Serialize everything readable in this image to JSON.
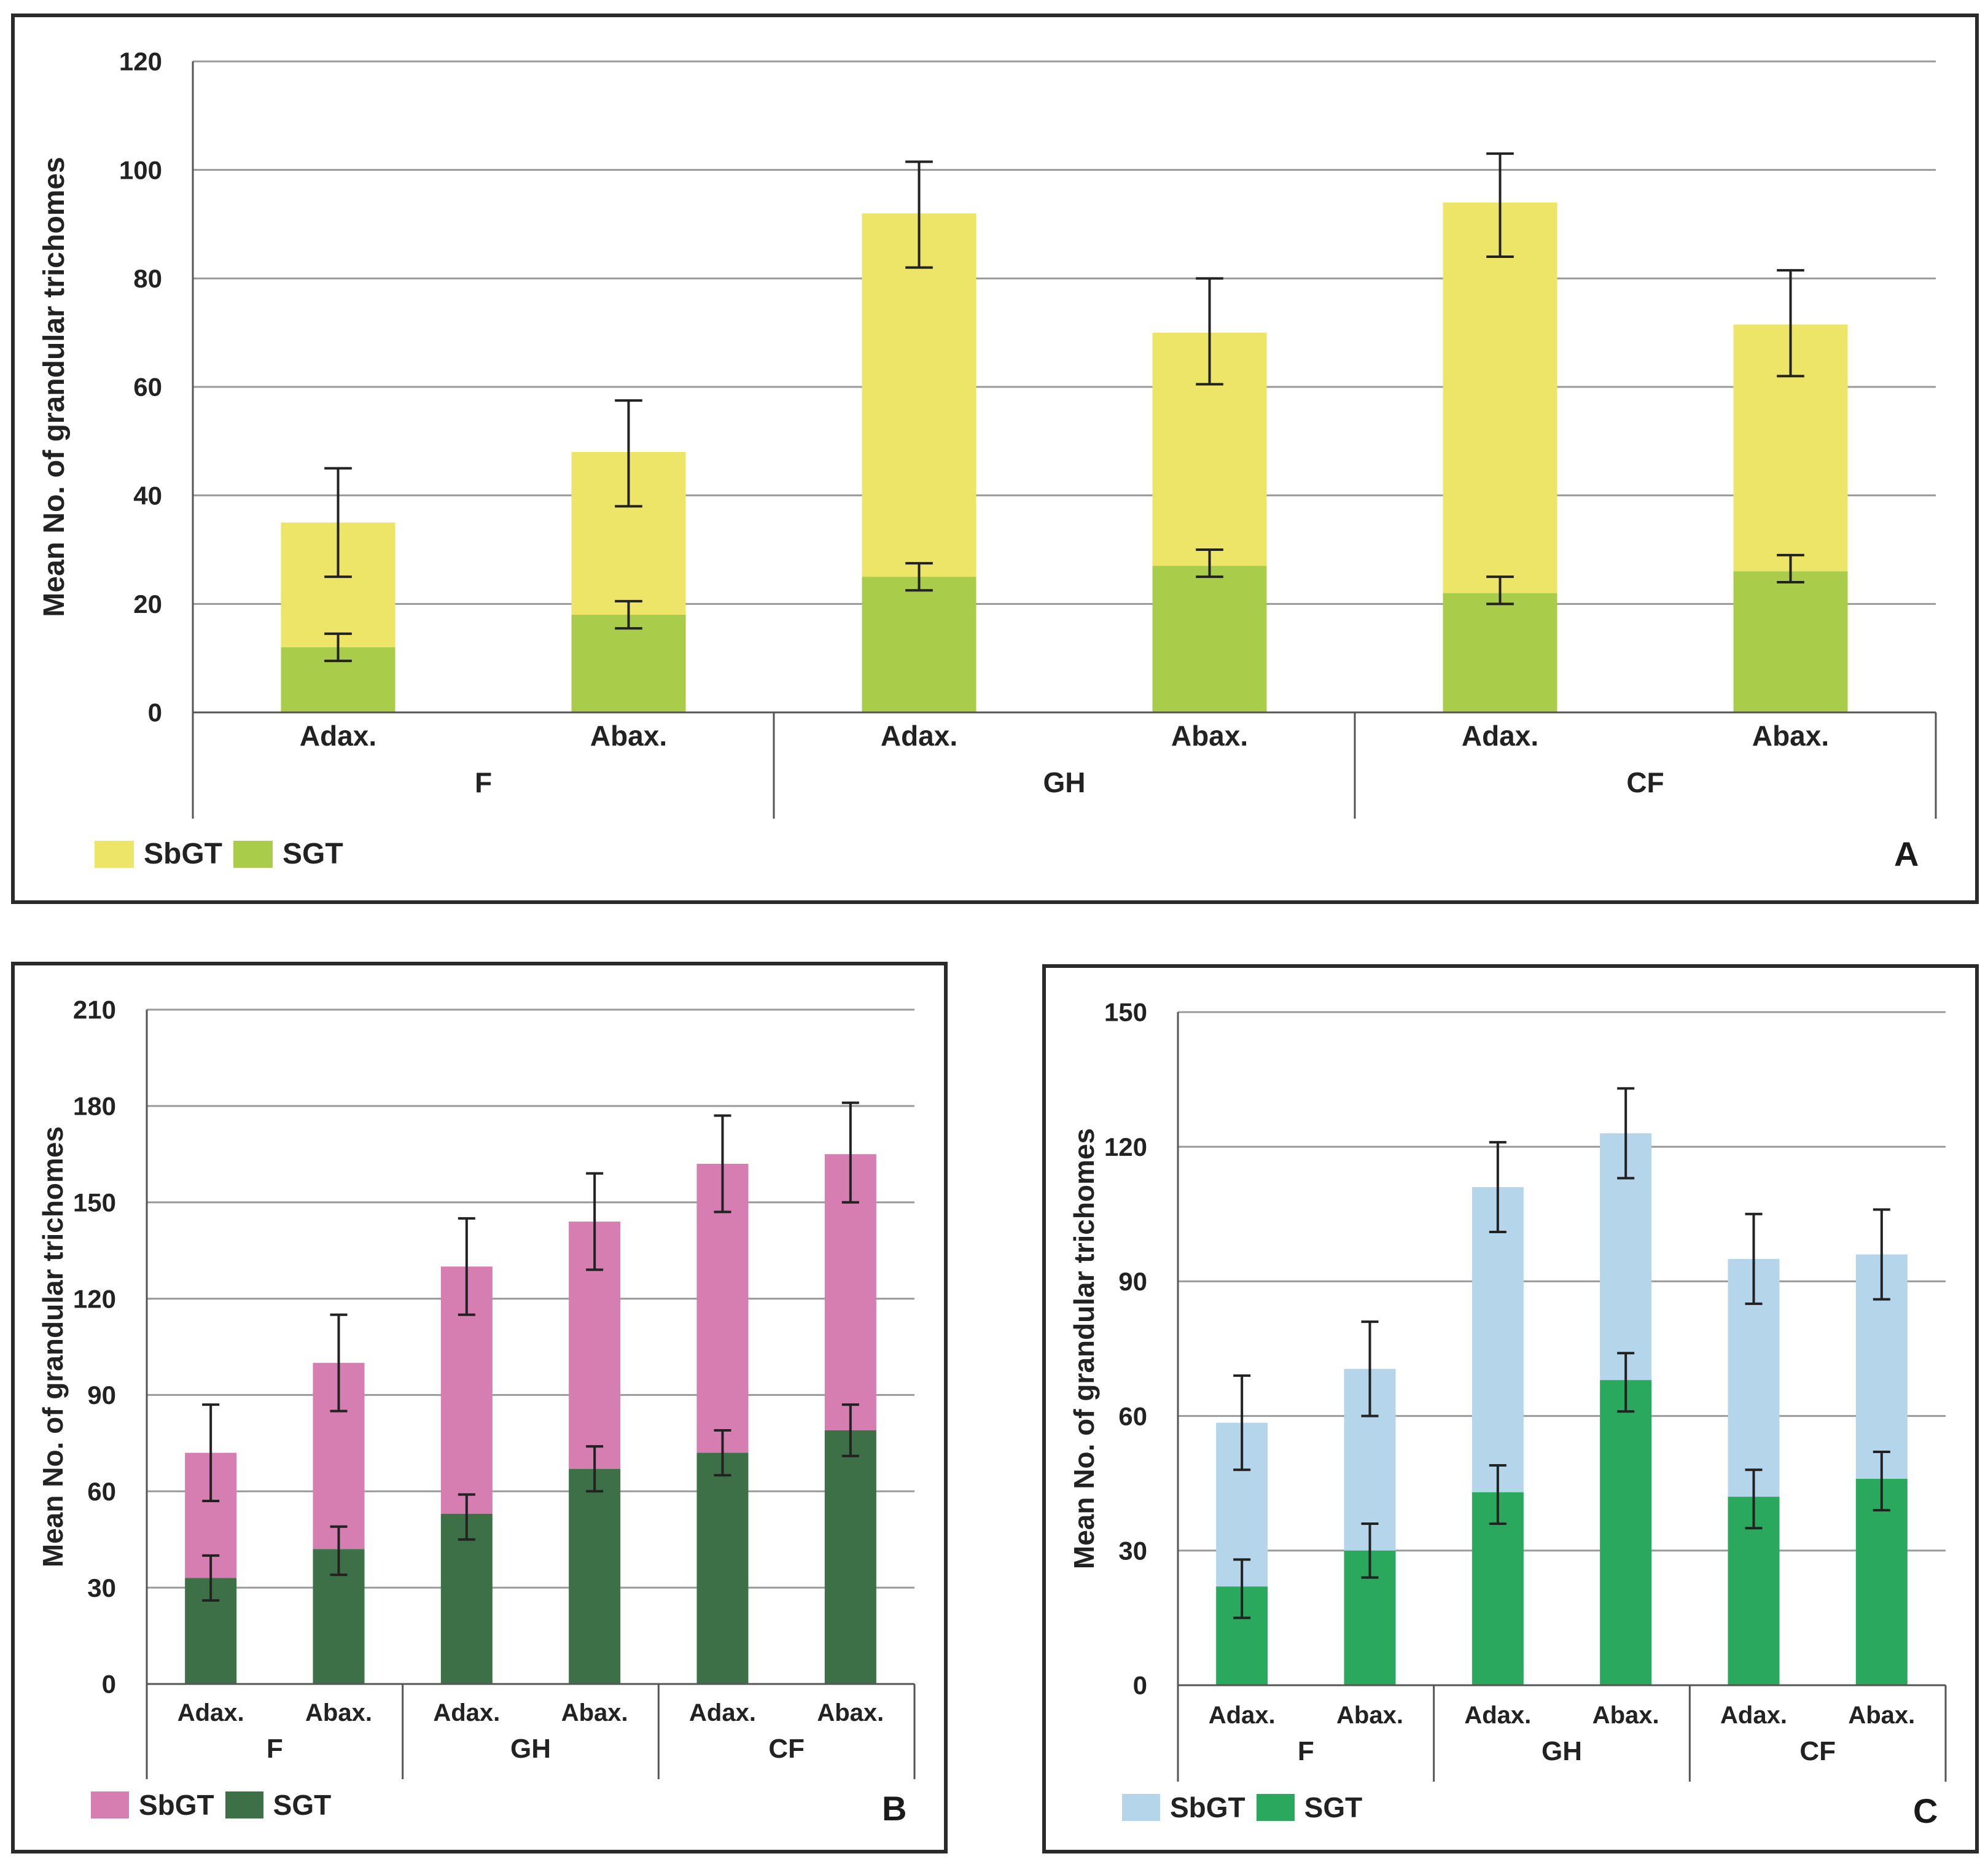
{
  "chart_data": [
    {
      "panel": "A",
      "type": "bar",
      "stacked": true,
      "ylabel": "Mean No. of grandular trichomes",
      "ylim": [
        0,
        120
      ],
      "yticks": [
        0,
        20,
        40,
        60,
        80,
        100,
        120
      ],
      "categories": [
        "Adax.",
        "Abax.",
        "Adax.",
        "Abax.",
        "Adax.",
        "Abax."
      ],
      "groups": [
        "F",
        "GH",
        "CF"
      ],
      "series": [
        {
          "name": "SGT",
          "color": "#a9cc4a",
          "values": [
            12,
            18,
            25,
            27,
            22,
            26
          ],
          "err_low": [
            9.5,
            15.5,
            22.5,
            25,
            20,
            24
          ],
          "err_high": [
            14.5,
            20.5,
            27.5,
            30,
            25,
            29
          ]
        },
        {
          "name": "SbGT",
          "color": "#ece567",
          "totals": [
            35,
            48,
            92,
            70,
            94,
            71.5
          ],
          "err_low": [
            25,
            38,
            82,
            60.5,
            84,
            62
          ],
          "err_high": [
            45,
            57.5,
            101.5,
            80,
            103,
            81.5
          ]
        }
      ],
      "legend": [
        "SbGT",
        "SGT"
      ],
      "label": "A"
    },
    {
      "panel": "B",
      "type": "bar",
      "stacked": true,
      "ylabel": "Mean No. of grandular trichomes",
      "ylim": [
        0,
        210
      ],
      "yticks": [
        0,
        30,
        60,
        90,
        120,
        150,
        180,
        210
      ],
      "categories": [
        "Adax.",
        "Abax.",
        "Adax.",
        "Abax.",
        "Adax.",
        "Abax."
      ],
      "groups": [
        "F",
        "GH",
        "CF"
      ],
      "series": [
        {
          "name": "SGT",
          "color": "#3e7047",
          "values": [
            33,
            42,
            53,
            67,
            72,
            79
          ],
          "err_low": [
            26,
            34,
            45,
            60,
            65,
            71
          ],
          "err_high": [
            40,
            49,
            59,
            74,
            79,
            87
          ]
        },
        {
          "name": "SbGT",
          "color": "#d67db1",
          "totals": [
            72,
            100,
            130,
            144,
            162,
            165
          ],
          "err_low": [
            57,
            85,
            115,
            129,
            147,
            150
          ],
          "err_high": [
            87,
            115,
            145,
            159,
            177,
            181
          ]
        }
      ],
      "legend": [
        "SbGT",
        "SGT"
      ],
      "label": "B"
    },
    {
      "panel": "C",
      "type": "bar",
      "stacked": true,
      "ylabel": "Mean No. of grandular trichomes",
      "ylim": [
        0,
        150
      ],
      "yticks": [
        0,
        30,
        60,
        90,
        120,
        150
      ],
      "categories": [
        "Adax.",
        "Abax.",
        "Adax.",
        "Abax.",
        "Adax.",
        "Abax."
      ],
      "groups": [
        "F",
        "GH",
        "CF"
      ],
      "series": [
        {
          "name": "SGT",
          "color": "#2aa85e",
          "values": [
            22,
            30,
            43,
            68,
            42,
            46
          ],
          "err_low": [
            15,
            24,
            36,
            61,
            35,
            39
          ],
          "err_high": [
            28,
            36,
            49,
            74,
            48,
            52
          ]
        },
        {
          "name": "SbGT",
          "color": "#b5d6ea",
          "totals": [
            58.5,
            70.5,
            111,
            123,
            95,
            96
          ],
          "err_low": [
            48,
            60,
            101,
            113,
            85,
            86
          ],
          "err_high": [
            69,
            81,
            121,
            133,
            105,
            106
          ]
        }
      ],
      "legend": [
        "SbGT",
        "SGT"
      ],
      "label": "C"
    }
  ]
}
